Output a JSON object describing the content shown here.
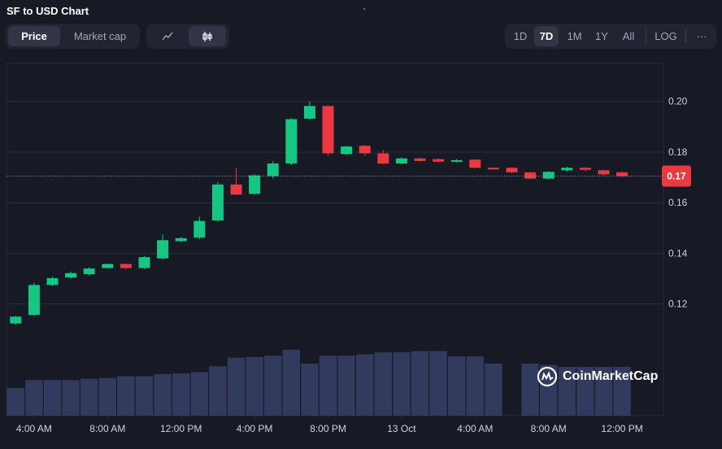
{
  "header": {
    "title": "SF to USD Chart"
  },
  "metric_tabs": [
    {
      "label": "Price",
      "active": true
    },
    {
      "label": "Market cap",
      "active": false
    }
  ],
  "chart_types": [
    {
      "icon": "line-chart-icon",
      "active": false
    },
    {
      "icon": "candlestick-icon",
      "active": true
    }
  ],
  "ranges": [
    {
      "label": "1D",
      "active": false
    },
    {
      "label": "7D",
      "active": true
    },
    {
      "label": "1M",
      "active": false
    },
    {
      "label": "1Y",
      "active": false
    },
    {
      "label": "All",
      "active": false
    },
    {
      "label": "LOG",
      "active": false
    }
  ],
  "more_label": "···",
  "watermark": {
    "text": "CoinMarketCap"
  },
  "colors": {
    "up": "#16c784",
    "down": "#ea3943",
    "volume": "#323a5e",
    "grid": "#2b2f3d",
    "bg": "#171924"
  },
  "chart_data": {
    "type": "candlestick",
    "title": "SF to USD Chart",
    "y_ticks": [
      "0.12",
      "0.14",
      "0.16",
      "0.18",
      "0.20"
    ],
    "ylim": [
      0.1,
      0.215
    ],
    "current_price_label": "0.17",
    "current_price": 0.1705,
    "x_ticks": [
      {
        "label": "4:00 AM",
        "at": 1.5
      },
      {
        "label": "8:00 AM",
        "at": 5.5
      },
      {
        "label": "12:00 PM",
        "at": 9.5
      },
      {
        "label": "4:00 PM",
        "at": 13.5
      },
      {
        "label": "8:00 PM",
        "at": 17.5
      },
      {
        "label": "13 Oct",
        "at": 21.5
      },
      {
        "label": "4:00 AM",
        "at": 25.5
      },
      {
        "label": "8:00 AM",
        "at": 29.5
      },
      {
        "label": "12:00 PM",
        "at": 33.5
      }
    ],
    "candles": [
      {
        "o": 0.1123,
        "h": 0.1153,
        "l": 0.1118,
        "c": 0.115
      },
      {
        "o": 0.1157,
        "h": 0.1285,
        "l": 0.1152,
        "c": 0.1275
      },
      {
        "o": 0.1275,
        "h": 0.1308,
        "l": 0.127,
        "c": 0.1302
      },
      {
        "o": 0.1305,
        "h": 0.1328,
        "l": 0.13,
        "c": 0.1322
      },
      {
        "o": 0.1318,
        "h": 0.1345,
        "l": 0.1312,
        "c": 0.134
      },
      {
        "o": 0.1342,
        "h": 0.136,
        "l": 0.134,
        "c": 0.1358
      },
      {
        "o": 0.1358,
        "h": 0.136,
        "l": 0.1338,
        "c": 0.1342
      },
      {
        "o": 0.1342,
        "h": 0.139,
        "l": 0.1338,
        "c": 0.1385
      },
      {
        "o": 0.138,
        "h": 0.1475,
        "l": 0.1375,
        "c": 0.1452
      },
      {
        "o": 0.1448,
        "h": 0.1465,
        "l": 0.1445,
        "c": 0.146
      },
      {
        "o": 0.1462,
        "h": 0.1545,
        "l": 0.1455,
        "c": 0.1528
      },
      {
        "o": 0.153,
        "h": 0.1682,
        "l": 0.1525,
        "c": 0.1672
      },
      {
        "o": 0.1672,
        "h": 0.1737,
        "l": 0.163,
        "c": 0.1632
      },
      {
        "o": 0.1635,
        "h": 0.1712,
        "l": 0.1632,
        "c": 0.1708
      },
      {
        "o": 0.1705,
        "h": 0.1765,
        "l": 0.1695,
        "c": 0.1755
      },
      {
        "o": 0.1755,
        "h": 0.1935,
        "l": 0.1748,
        "c": 0.193
      },
      {
        "o": 0.1932,
        "h": 0.2,
        "l": 0.1928,
        "c": 0.1982
      },
      {
        "o": 0.1982,
        "h": 0.1985,
        "l": 0.1785,
        "c": 0.1795
      },
      {
        "o": 0.1792,
        "h": 0.1825,
        "l": 0.1788,
        "c": 0.1822
      },
      {
        "o": 0.1825,
        "h": 0.1828,
        "l": 0.1785,
        "c": 0.1795
      },
      {
        "o": 0.1795,
        "h": 0.1808,
        "l": 0.1752,
        "c": 0.1755
      },
      {
        "o": 0.1755,
        "h": 0.178,
        "l": 0.1752,
        "c": 0.1775
      },
      {
        "o": 0.1775,
        "h": 0.1778,
        "l": 0.1762,
        "c": 0.1765
      },
      {
        "o": 0.1772,
        "h": 0.1775,
        "l": 0.176,
        "c": 0.1762
      },
      {
        "o": 0.1762,
        "h": 0.1772,
        "l": 0.176,
        "c": 0.1768
      },
      {
        "o": 0.177,
        "h": 0.1772,
        "l": 0.1735,
        "c": 0.1738
      },
      {
        "o": 0.1738,
        "h": 0.174,
        "l": 0.1734,
        "c": 0.1736
      },
      {
        "o": 0.1738,
        "h": 0.174,
        "l": 0.1718,
        "c": 0.172
      },
      {
        "o": 0.172,
        "h": 0.1722,
        "l": 0.1692,
        "c": 0.1695
      },
      {
        "o": 0.1695,
        "h": 0.1725,
        "l": 0.1692,
        "c": 0.1722
      },
      {
        "o": 0.1728,
        "h": 0.1742,
        "l": 0.1722,
        "c": 0.1738
      },
      {
        "o": 0.1738,
        "h": 0.174,
        "l": 0.1725,
        "c": 0.173
      },
      {
        "o": 0.1728,
        "h": 0.173,
        "l": 0.1708,
        "c": 0.1712
      },
      {
        "o": 0.172,
        "h": 0.1722,
        "l": 0.1702,
        "c": 0.1705
      }
    ],
    "volume": [
      0.42,
      0.54,
      0.54,
      0.54,
      0.56,
      0.57,
      0.6,
      0.6,
      0.63,
      0.64,
      0.66,
      0.75,
      0.88,
      0.89,
      0.91,
      1.0,
      0.79,
      0.91,
      0.91,
      0.93,
      0.96,
      0.96,
      0.98,
      0.98,
      0.9,
      0.9,
      0.79,
      null,
      0.79,
      0.77,
      0.74,
      0.74,
      0.74,
      0.74
    ]
  }
}
